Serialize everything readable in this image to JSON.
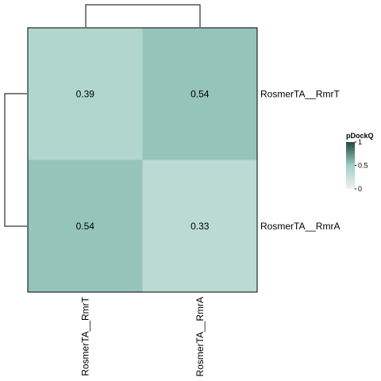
{
  "chart_data": {
    "type": "heatmap",
    "rows": [
      "RosmerTA__RmrT",
      "RosmerTA__RmrA"
    ],
    "columns": [
      "RosmerTA__RmrT",
      "RosmerTA__RmrA"
    ],
    "values": [
      [
        0.39,
        0.54
      ],
      [
        0.54,
        0.33
      ]
    ],
    "cell_labels": [
      [
        "0.39",
        "0.54"
      ],
      [
        "0.54",
        "0.33"
      ]
    ],
    "color_scale": {
      "domain": [
        0,
        0.5,
        1
      ],
      "colors": [
        "#f0f0f0",
        "#9fcfc5",
        "#1f4a3d"
      ]
    },
    "legend": {
      "title": "pDockQ",
      "ticks": [
        "1",
        "0.5",
        "0"
      ],
      "tick_values": [
        1,
        0.5,
        0
      ],
      "placement": "right"
    },
    "row_dendrogram": true,
    "column_dendrogram": true
  }
}
